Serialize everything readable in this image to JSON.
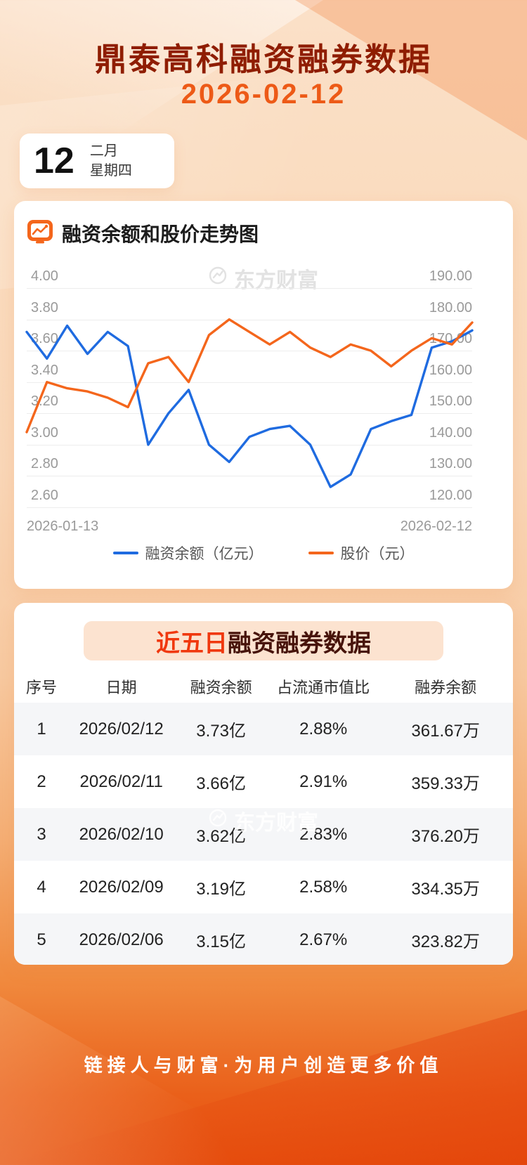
{
  "colors": {
    "title": "#8f1d02",
    "date": "#ed5a17",
    "line_blue": "#1f6be0",
    "line_orange": "#f4661c",
    "badge_bg": "#fce3d0",
    "badge_highlight": "#f0380e",
    "badge_text": "#47130a",
    "row_alt_bg": "#f5f6f8"
  },
  "header": {
    "title": "鼎泰高科融资融券数据",
    "date": "2026-02-12"
  },
  "date_card": {
    "day": "12",
    "month": "二月",
    "weekday": "星期四"
  },
  "chart_card": {
    "heading": "融资余额和股价走势图",
    "watermark": "东方财富"
  },
  "chart_data": {
    "type": "line",
    "title": "融资余额和股价走势图",
    "x_axis": {
      "start_label": "2026-01-13",
      "end_label": "2026-02-12"
    },
    "left_axis": {
      "name": "融资余额（亿元）",
      "min": 2.6,
      "max": 4.0,
      "ticks": [
        "4.00",
        "3.80",
        "3.60",
        "3.40",
        "3.20",
        "3.00",
        "2.80",
        "2.60"
      ]
    },
    "right_axis": {
      "name": "股价（元）",
      "min": 120,
      "max": 190,
      "ticks": [
        "190.00",
        "180.00",
        "170.00",
        "160.00",
        "150.00",
        "140.00",
        "130.00",
        "120.00"
      ]
    },
    "series": [
      {
        "name": "融资余额（亿元）",
        "axis": "left",
        "color": "#1f6be0",
        "values": [
          3.72,
          3.55,
          3.76,
          3.58,
          3.72,
          3.63,
          3.0,
          3.2,
          3.35,
          3.0,
          2.89,
          3.05,
          3.1,
          3.12,
          3.0,
          2.73,
          2.81,
          3.1,
          3.15,
          3.19,
          3.62,
          3.66,
          3.73
        ]
      },
      {
        "name": "股价（元）",
        "axis": "right",
        "color": "#f4661c",
        "values": [
          144,
          160,
          158,
          157,
          155,
          152,
          166,
          168,
          160,
          175,
          180,
          176,
          172,
          176,
          171,
          168,
          172,
          170,
          165,
          170,
          174,
          172,
          179
        ]
      }
    ],
    "grid": true,
    "legend_position": "bottom"
  },
  "table_card": {
    "badge_highlight": "近五日",
    "badge_rest": "融资融券数据",
    "columns": [
      "序号",
      "日期",
      "融资余额",
      "占流通市值比",
      "融券余额"
    ],
    "rows": [
      [
        "1",
        "2026/02/12",
        "3.73亿",
        "2.88%",
        "361.67万"
      ],
      [
        "2",
        "2026/02/11",
        "3.66亿",
        "2.91%",
        "359.33万"
      ],
      [
        "3",
        "2026/02/10",
        "3.62亿",
        "2.83%",
        "376.20万"
      ],
      [
        "4",
        "2026/02/09",
        "3.19亿",
        "2.58%",
        "334.35万"
      ],
      [
        "5",
        "2026/02/06",
        "3.15亿",
        "2.67%",
        "323.82万"
      ]
    ],
    "watermark": "东方财富"
  },
  "footer": {
    "slogan": "链接人与财富·为用户创造更多价值"
  }
}
